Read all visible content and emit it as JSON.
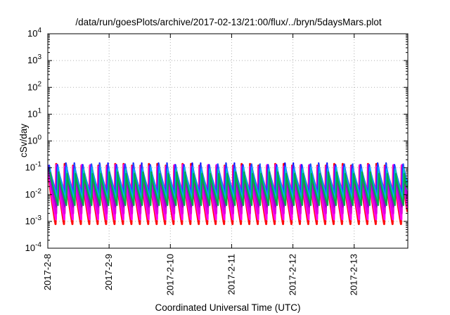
{
  "chart_data": {
    "type": "area",
    "title": "/data/run/goesPlots/archive/2017-02-13/21:00/flux/../bryn/5daysMars.plot",
    "xlabel": "Coordinated Universal Time (UTC)",
    "ylabel": "cSv/day",
    "y_scale": "log",
    "ylim": [
      0.0001,
      10000
    ],
    "xlim": [
      "2017-02-08 00:00",
      "2017-02-13 21:00"
    ],
    "x_ticks": [
      "2017-2-8",
      "2017-2-9",
      "2017-2-10",
      "2017-2-11",
      "2017-2-12",
      "2017-2-13"
    ],
    "y_ticks": [
      {
        "value": 0.0001,
        "base": "10",
        "exp": "-4"
      },
      {
        "value": 0.001,
        "base": "10",
        "exp": "-3"
      },
      {
        "value": 0.01,
        "base": "10",
        "exp": "-2"
      },
      {
        "value": 0.1,
        "base": "10",
        "exp": "-1"
      },
      {
        "value": 1,
        "base": "10",
        "exp": "0"
      },
      {
        "value": 10,
        "base": "10",
        "exp": "1"
      },
      {
        "value": 100,
        "base": "10",
        "exp": "2"
      },
      {
        "value": 1000,
        "base": "10",
        "exp": "3"
      },
      {
        "value": 10000,
        "base": "10",
        "exp": "4"
      }
    ],
    "grid": true,
    "legend": "none",
    "cycle_hours": 3.3,
    "series": [
      {
        "color": "#ff0000",
        "peak": 0.12,
        "trough": 0.0008
      },
      {
        "color": "#ff00ff",
        "peak": 0.11,
        "trough": 0.0012
      },
      {
        "color": "#dd00dd",
        "peak": 0.1,
        "trough": 0.002
      },
      {
        "color": "#9900cc",
        "peak": 0.1,
        "trough": 0.0035
      },
      {
        "color": "#0000ff",
        "peak": 0.13,
        "trough": 0.006
      },
      {
        "color": "#2255ff",
        "peak": 0.12,
        "trough": 0.01
      },
      {
        "color": "#00aaff",
        "peak": 0.09,
        "trough": 0.007
      },
      {
        "color": "#00ccaa",
        "peak": 0.07,
        "trough": 0.005
      },
      {
        "color": "#00aa44",
        "peak": 0.06,
        "trough": 0.004
      }
    ]
  }
}
